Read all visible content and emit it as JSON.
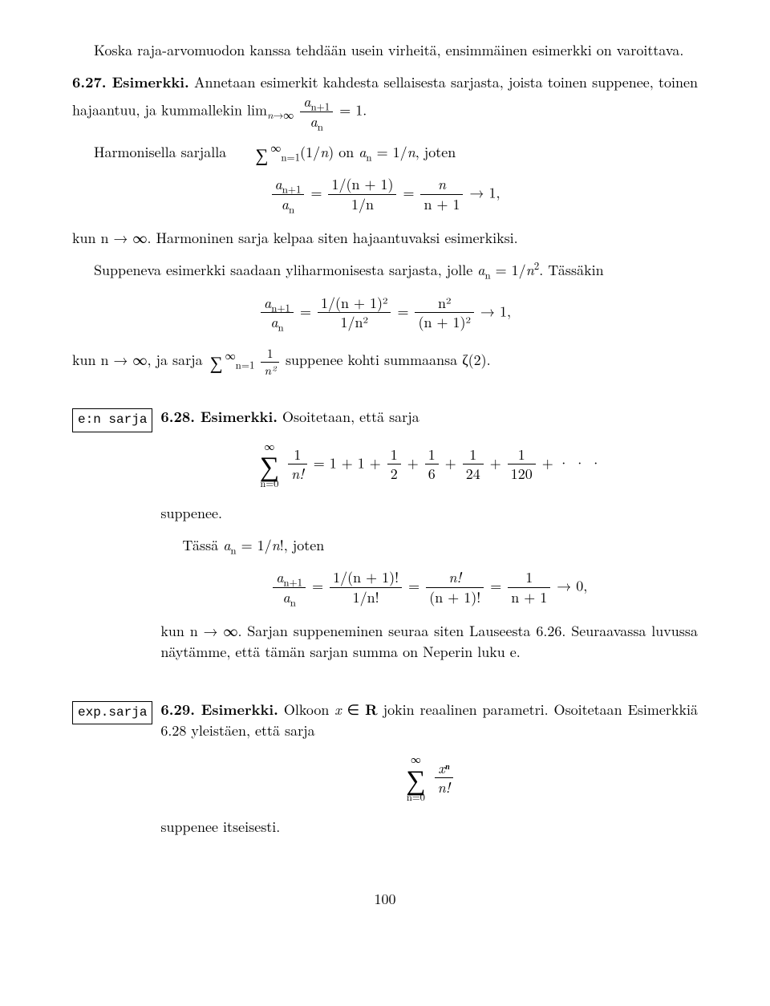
{
  "intro": {
    "p1": "Koska raja-arvomuodon kanssa tehdään usein virheitä, ensimmäinen esimerkki on varoittava."
  },
  "ex627": {
    "label": "6.27. Esimerkki.",
    "p1a": "Annetaan esimerkit kahdesta sellaisesta sarjasta, joista toinen suppenee, toinen hajaantuu, ja kummallekin lim",
    "p1b": " = 1.",
    "p2a": "Harmonisella sarjalla ",
    "p2b": "(1/",
    "p2c": ") on ",
    "p2d": " = 1/",
    "p2e": ", joten",
    "disp1_lhs_num_a": "a",
    "disp1_lhs_num_sub": "n+1",
    "disp1_lhs_den_a": "a",
    "disp1_lhs_den_sub": "n",
    "disp1_eq1": " = ",
    "disp1_mid_num": "1/(n + 1)",
    "disp1_mid_den": "1/n",
    "disp1_eq2": " = ",
    "disp1_rhs_num": "n",
    "disp1_rhs_den": "n + 1",
    "disp1_tail": " → 1,",
    "p3": "kun n → ∞. Harmoninen sarja kelpaa siten hajaantuvaksi esimerkiksi.",
    "p4a": "Suppeneva esimerkki saadaan yliharmonisesta sarjasta, jolle ",
    "p4b": " = 1/",
    "p4c": ". Tässäkin",
    "disp2_mid_num": "1/(n + 1)²",
    "disp2_mid_den": "1/n²",
    "disp2_rhs_num": "n²",
    "disp2_rhs_den": "(n + 1)²",
    "p5a": "kun n → ∞, ja sarja ",
    "p5b": " suppenee kohti summaansa ζ(2)."
  },
  "ex628": {
    "box": "e:n sarja",
    "label": "6.28. Esimerkki.",
    "label_tail": "Osoitetaan, että sarja",
    "disp_sum_top": "∞",
    "disp_sum_bot": "n=0",
    "disp_frac_num": "1",
    "disp_frac_den": "n!",
    "disp_eq": " = 1 + 1 + ",
    "f2n": "1",
    "f2d": "2",
    "f3n": "1",
    "f3d": "6",
    "f4n": "1",
    "f4d": "24",
    "f5n": "1",
    "f5d": "120",
    "dots": " + · · ·",
    "p2": "suppenee.",
    "p3a": "Tässä ",
    "p3b": " = 1/",
    "p3c": "!, joten",
    "disp2_mid_num": "1/(n + 1)!",
    "disp2_mid_den": "1/n!",
    "disp2_rhs1_num": "n!",
    "disp2_rhs1_den": "(n + 1)!",
    "disp2_rhs2_num": "1",
    "disp2_rhs2_den": "n + 1",
    "disp2_tail": " → 0,",
    "p4": "kun n → ∞. Sarjan suppeneminen seuraa siten Lauseesta 6.26. Seuraavassa luvussa näytämme, että tämän sarjan summa on Neperin luku e."
  },
  "ex629": {
    "box": "exp.sarja",
    "label": "6.29. Esimerkki.",
    "p1a": "Olkoon ",
    "p1_var": "x",
    "p1b": " ∈ ",
    "p1_set": "R",
    "p1c": " jokin reaalinen parametri. Osoitetaan Esimerkkiä 6.28 yleistäen, että sarja",
    "disp_num": "xⁿ",
    "disp_den": "n!",
    "p2": "suppenee itseisesti."
  },
  "pagenum": "100",
  "sym": {
    "a": "a",
    "n": "n",
    "nplus1": "n+1",
    "nsq": "n²",
    "sum": "∑",
    "inf": "∞",
    "eq1bot": "n=1",
    "invnsq": "1",
    "invnsq_den": "n²",
    "plus": " + "
  },
  "style": {
    "font_family": "Computer Modern / Latin Modern serif",
    "body_fontsize_pt": 12,
    "text_color": "#000000",
    "background_color": "#ffffff",
    "box_border": "#000000"
  }
}
